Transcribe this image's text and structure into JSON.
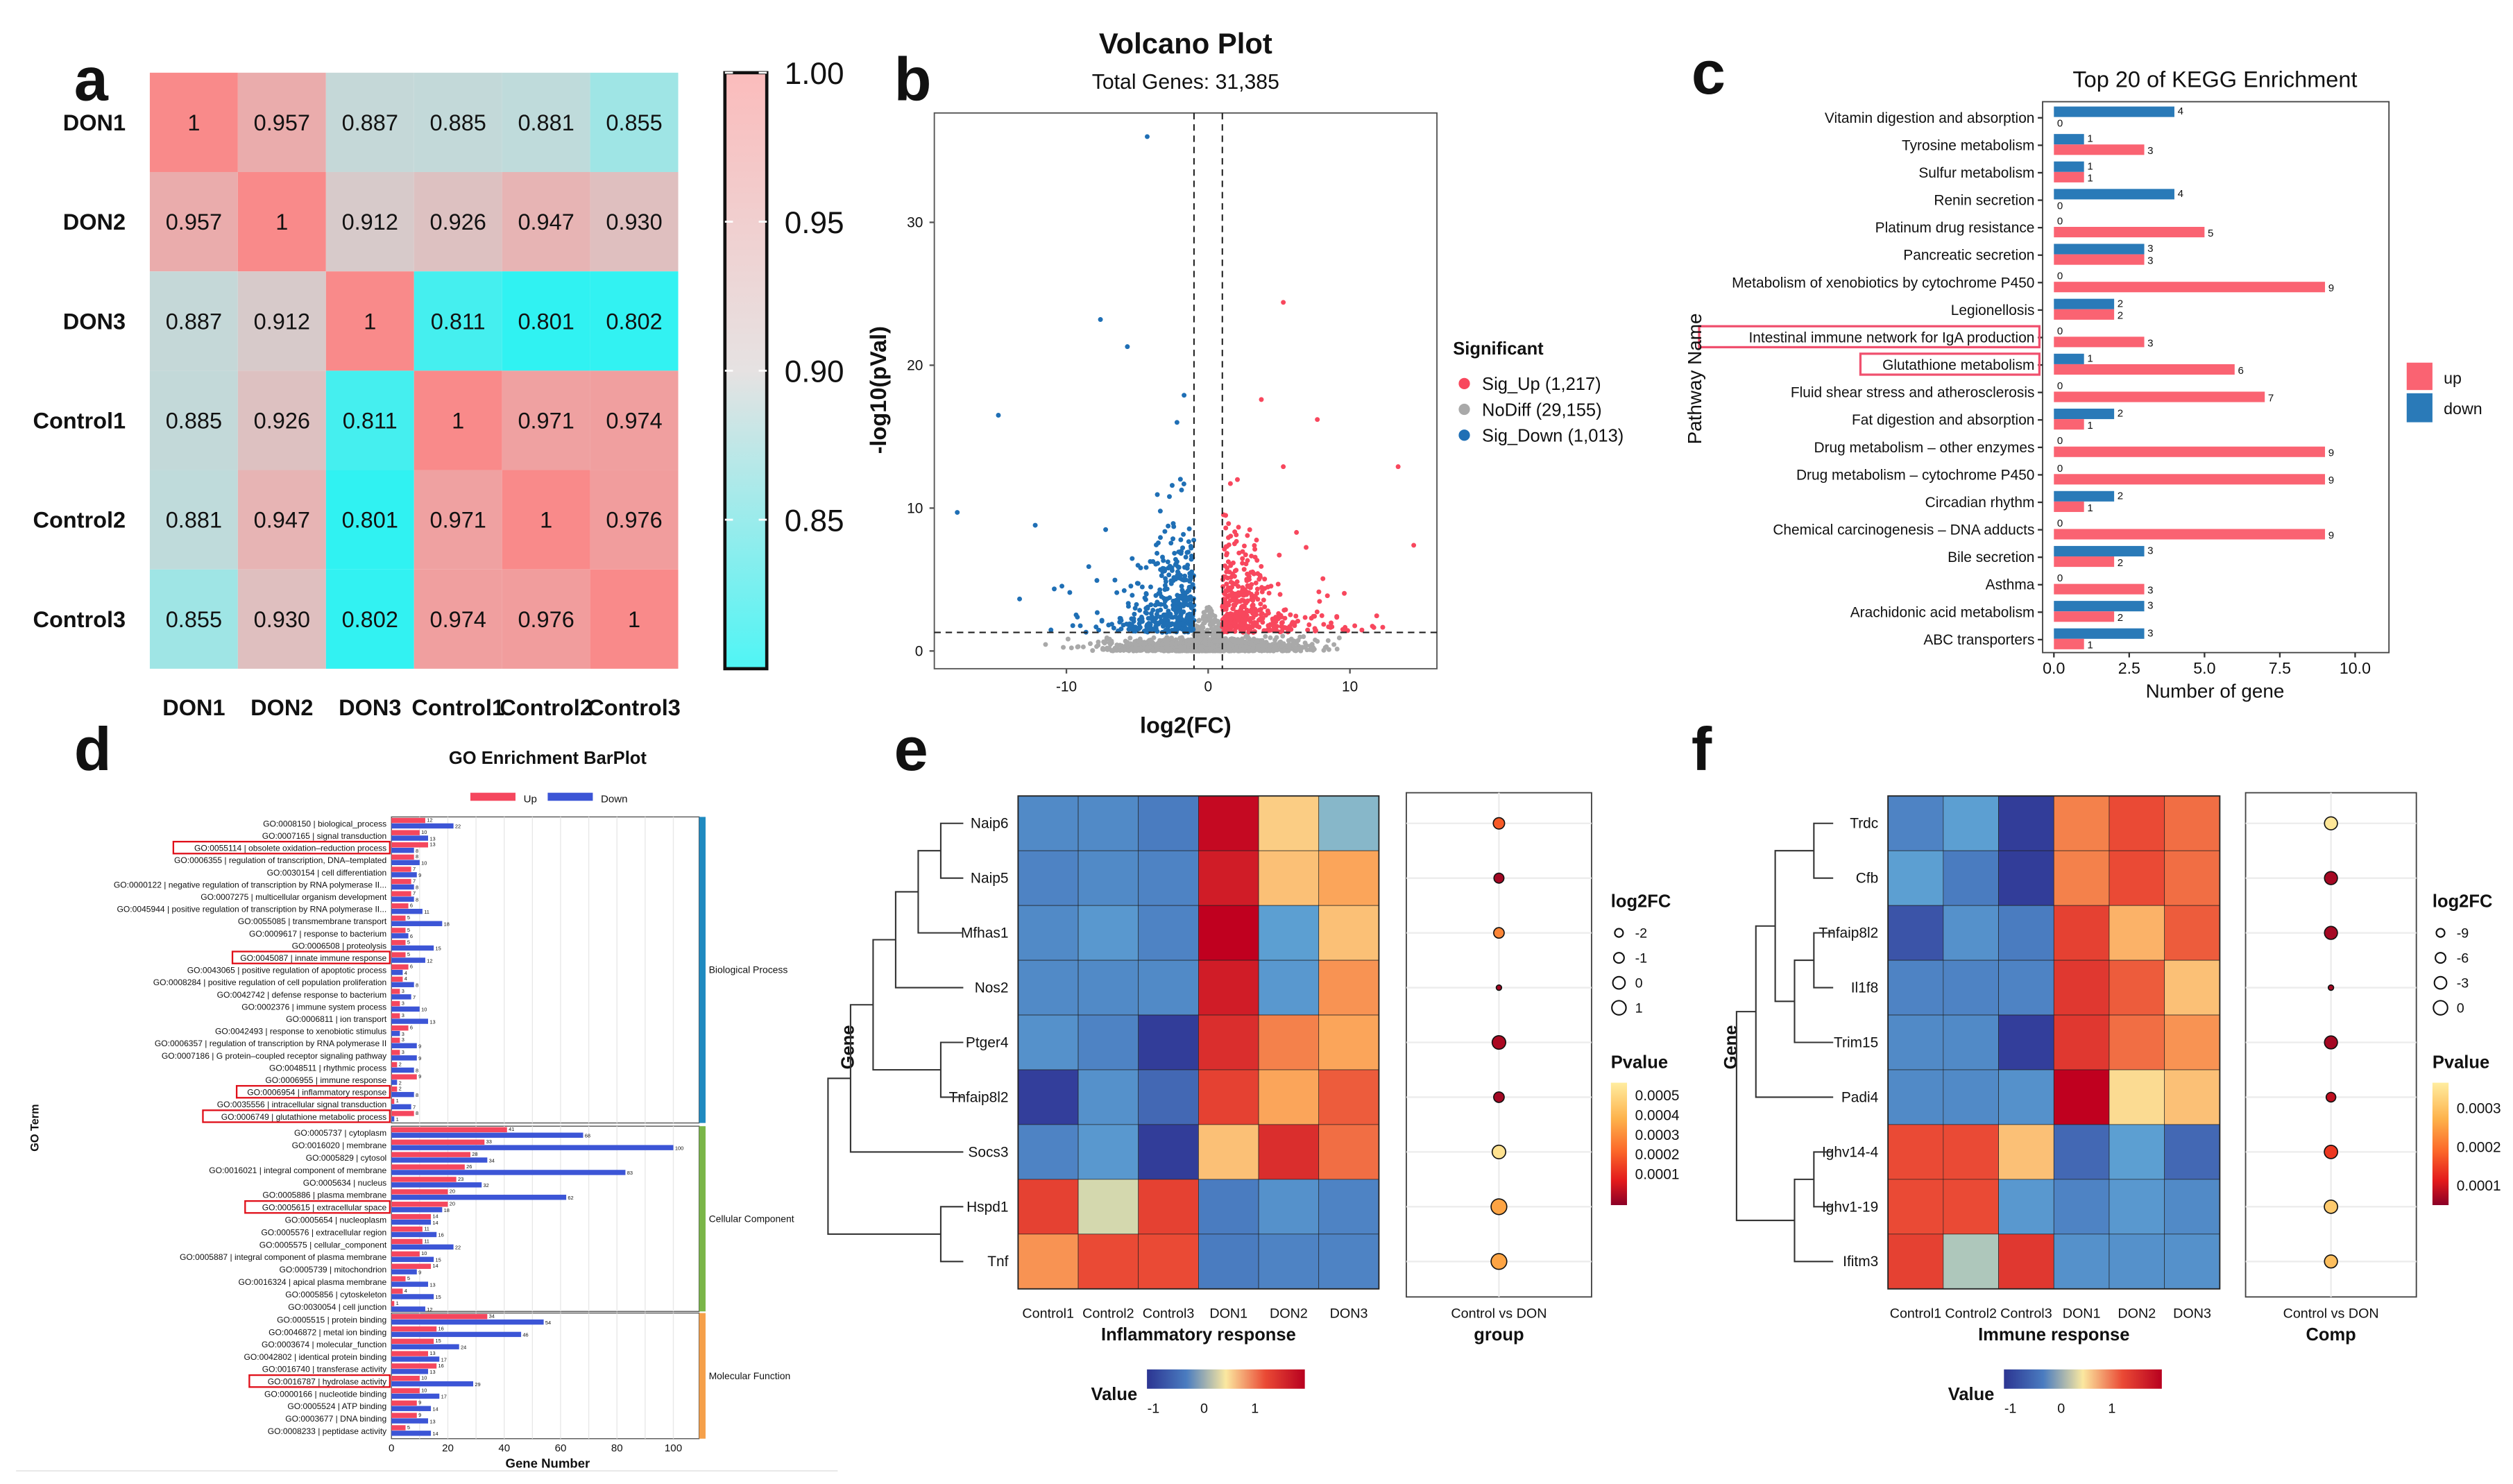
{
  "chart_data": [
    {
      "panel_label": "a",
      "type": "heatmap",
      "rows": [
        "DON1",
        "DON2",
        "DON3",
        "Control1",
        "Control2",
        "Control3"
      ],
      "columns": [
        "DON1",
        "DON2",
        "DON3",
        "Control1",
        "Control2",
        "Control3"
      ],
      "values": [
        [
          1,
          0.957,
          0.887,
          0.885,
          0.881,
          0.855
        ],
        [
          0.957,
          1,
          0.912,
          0.926,
          0.947,
          0.93
        ],
        [
          0.887,
          0.912,
          1,
          0.811,
          0.801,
          0.802
        ],
        [
          0.885,
          0.926,
          0.811,
          1,
          0.971,
          0.974
        ],
        [
          0.881,
          0.947,
          0.801,
          0.971,
          1,
          0.976
        ],
        [
          0.855,
          0.93,
          0.802,
          0.974,
          0.976,
          1
        ]
      ],
      "colorbar": {
        "range": [
          0.8,
          1.0
        ],
        "ticks": [
          1.0,
          0.95,
          0.9,
          0.85
        ],
        "tick_labels": [
          "1.00",
          "0.95",
          "0.90",
          "0.85"
        ],
        "colors": {
          "low": "#2ef2f2",
          "mid": "#d2d2d2",
          "high": "#f98a8a"
        }
      }
    },
    {
      "panel_label": "b",
      "type": "scatter",
      "title": "Volcano Plot",
      "subtitle": "Total Genes: 31,385",
      "xlabel": "log2(FC)",
      "ylabel": "-log10(pVal)",
      "xlim": [
        -19.5,
        16
      ],
      "ylim": [
        -1,
        37.5
      ],
      "xticks": [
        -10,
        0,
        10
      ],
      "yticks": [
        0,
        10,
        20,
        30
      ],
      "thresholds": {
        "log2fc": [
          -1,
          1
        ],
        "neg_log10_p": 1.3
      },
      "legend": {
        "title": "Significant",
        "position": "right",
        "items": [
          {
            "label": "Sig_Up (1,217)",
            "color": "#f8475d"
          },
          {
            "label": "NoDiff (29,155)",
            "color": "#a9a9a9"
          },
          {
            "label": "Sig_Down (1,013)",
            "color": "#1f6fb5"
          }
        ]
      },
      "highlighted_points": {
        "sig_down": [
          [
            -4.3,
            36
          ],
          [
            -7.6,
            23.2
          ],
          [
            -5.7,
            21.3
          ],
          [
            -14.8,
            16.5
          ],
          [
            -17.7,
            9.7
          ],
          [
            -12.2,
            8.8
          ],
          [
            -1.7,
            17.9
          ],
          [
            -2.2,
            16
          ]
        ],
        "sig_up": [
          [
            5.3,
            24.4
          ],
          [
            3.75,
            17.6
          ],
          [
            13.4,
            12.9
          ],
          [
            14.5,
            7.4
          ],
          [
            7.7,
            16.2
          ],
          [
            5.3,
            12.9
          ]
        ]
      }
    },
    {
      "panel_label": "c",
      "type": "bar",
      "orientation": "horizontal",
      "title": "Top 20 of KEGG Enrichment",
      "xlabel": "Number of gene",
      "ylabel": "Pathway Name",
      "xlim": [
        0,
        11
      ],
      "xtick_labels": [
        "0.0",
        "2.5",
        "5.0",
        "7.5",
        "10.0"
      ],
      "xticks": [
        0,
        2.5,
        5,
        7.5,
        10
      ],
      "categories": [
        "Vitamin digestion and absorption",
        "Tyrosine metabolism",
        "Sulfur metabolism",
        "Renin secretion",
        "Platinum drug resistance",
        "Pancreatic secretion",
        "Metabolism of xenobiotics by cytochrome P450",
        "Legionellosis",
        "Intestinal immune network for IgA production",
        "Glutathione metabolism",
        "Fluid shear stress and atherosclerosis",
        "Fat digestion and absorption",
        "Drug metabolism – other enzymes",
        "Drug metabolism – cytochrome P450",
        "Circadian rhythm",
        "Chemical carcinogenesis – DNA adducts",
        "Bile secretion",
        "Asthma",
        "Arachidonic acid metabolism",
        "ABC transporters"
      ],
      "highlighted": [
        "Intestinal immune network for IgA production",
        "Glutathione metabolism"
      ],
      "series": [
        {
          "name": "up",
          "color": "#fa6372",
          "values": [
            0,
            3,
            1,
            0,
            5,
            3,
            9,
            2,
            3,
            6,
            7,
            1,
            9,
            9,
            1,
            9,
            2,
            3,
            2,
            1
          ]
        },
        {
          "name": "down",
          "color": "#2a7ab8",
          "values": [
            4,
            1,
            1,
            4,
            0,
            3,
            0,
            2,
            0,
            1,
            0,
            2,
            0,
            0,
            2,
            0,
            3,
            0,
            3,
            3
          ]
        }
      ],
      "legend_position": "right"
    },
    {
      "panel_label": "d",
      "type": "bar",
      "orientation": "horizontal",
      "title": "GO Enrichment BarPlot",
      "xlabel": "Gene Number",
      "ylabel": "GO Term",
      "xticks": [
        0,
        20,
        40,
        60,
        80,
        100
      ],
      "xlim": [
        0,
        110
      ],
      "legend": {
        "position": "top",
        "items": [
          {
            "name": "Up",
            "color": "#f5475e"
          },
          {
            "name": "Down",
            "color": "#3c55d6"
          }
        ]
      },
      "groups": [
        {
          "name": "Biological Process",
          "color": "#1f8ac0",
          "terms": [
            {
              "label": "GO:0008150 | biological_process",
              "up": 12,
              "down": 22
            },
            {
              "label": "GO:0007165 | signal transduction",
              "up": 10,
              "down": 13
            },
            {
              "label": "GO:0055114 | obsolete oxidation–reduction process",
              "up": 13,
              "down": 8,
              "highlight": true
            },
            {
              "label": "GO:0006355 | regulation of transcription, DNA–templated",
              "up": 8,
              "down": 10
            },
            {
              "label": "GO:0030154 | cell differentiation",
              "up": 7,
              "down": 9
            },
            {
              "label": "GO:0000122 | negative regulation of transcription by RNA polymerase II...",
              "up": 7,
              "down": 8
            },
            {
              "label": "GO:0007275 | multicellular organism development",
              "up": 7,
              "down": 8
            },
            {
              "label": "GO:0045944 | positive regulation of transcription by RNA polymerase II...",
              "up": 6,
              "down": 11
            },
            {
              "label": "GO:0055085 | transmembrane transport",
              "up": 5,
              "down": 18
            },
            {
              "label": "GO:0009617 | response to bacterium",
              "up": 5,
              "down": 6
            },
            {
              "label": "GO:0006508 | proteolysis",
              "up": 5,
              "down": 15
            },
            {
              "label": "GO:0045087 | innate immune response",
              "up": 5,
              "down": 12,
              "highlight": true
            },
            {
              "label": "GO:0043065 | positive regulation of apoptotic process",
              "up": 6,
              "down": 4
            },
            {
              "label": "GO:0008284 | positive regulation of cell population proliferation",
              "up": 4,
              "down": 8
            },
            {
              "label": "GO:0042742 | defense response to bacterium",
              "up": 3,
              "down": 7
            },
            {
              "label": "GO:0002376 | immune system process",
              "up": 3,
              "down": 10
            },
            {
              "label": "GO:0006811 | ion transport",
              "up": 3,
              "down": 13
            },
            {
              "label": "GO:0042493 | response to xenobiotic stimulus",
              "up": 6,
              "down": 3
            },
            {
              "label": "GO:0006357 | regulation of transcription by RNA polymerase II",
              "up": 3,
              "down": 9
            },
            {
              "label": "GO:0007186 | G protein–coupled receptor signaling pathway",
              "up": 3,
              "down": 9
            },
            {
              "label": "GO:0048511 | rhythmic process",
              "up": 2,
              "down": 8
            },
            {
              "label": "GO:0006955 | immune response",
              "up": 9,
              "down": 2
            },
            {
              "label": "GO:0006954 | inflammatory response",
              "up": 2,
              "down": 8,
              "highlight": true
            },
            {
              "label": "GO:0035556 | intracellular signal transduction",
              "up": 1,
              "down": 7
            },
            {
              "label": "GO:0006749 | glutathione metabolic process",
              "up": 8,
              "down": 1,
              "highlight": true
            }
          ]
        },
        {
          "name": "Cellular Component",
          "color": "#7ab648",
          "terms": [
            {
              "label": "GO:0005737 | cytoplasm",
              "up": 41,
              "down": 68
            },
            {
              "label": "GO:0016020 | membrane",
              "up": 33,
              "down": 100
            },
            {
              "label": "GO:0005829 | cytosol",
              "up": 28,
              "down": 34
            },
            {
              "label": "GO:0016021 | integral component of membrane",
              "up": 26,
              "down": 83
            },
            {
              "label": "GO:0005634 | nucleus",
              "up": 23,
              "down": 32
            },
            {
              "label": "GO:0005886 | plasma membrane",
              "up": 20,
              "down": 62
            },
            {
              "label": "GO:0005615 | extracellular space",
              "up": 20,
              "down": 18,
              "highlight": true
            },
            {
              "label": "GO:0005654 | nucleoplasm",
              "up": 14,
              "down": 14
            },
            {
              "label": "GO:0005576 | extracellular region",
              "up": 11,
              "down": 16
            },
            {
              "label": "GO:0005575 | cellular_component",
              "up": 11,
              "down": 22
            },
            {
              "label": "GO:0005887 | integral component of plasma membrane",
              "up": 10,
              "down": 15
            },
            {
              "label": "GO:0005739 | mitochondrion",
              "up": 14,
              "down": 9
            },
            {
              "label": "GO:0016324 | apical plasma membrane",
              "up": 5,
              "down": 13
            },
            {
              "label": "GO:0005856 | cytoskeleton",
              "up": 4,
              "down": 15
            },
            {
              "label": "GO:0030054 | cell junction",
              "up": 1,
              "down": 12
            }
          ]
        },
        {
          "name": "Molecular Function",
          "color": "#f5a04a",
          "terms": [
            {
              "label": "GO:0005515 | protein binding",
              "up": 34,
              "down": 54
            },
            {
              "label": "GO:0046872 | metal ion binding",
              "up": 16,
              "down": 46
            },
            {
              "label": "GO:0003674 | molecular_function",
              "up": 15,
              "down": 24
            },
            {
              "label": "GO:0042802 | identical protein binding",
              "up": 13,
              "down": 17
            },
            {
              "label": "GO:0016740 | transferase activity",
              "up": 16,
              "down": 13
            },
            {
              "label": "GO:0016787 | hydrolase activity",
              "up": 10,
              "down": 29,
              "highlight": true
            },
            {
              "label": "GO:0000166 | nucleotide binding",
              "up": 10,
              "down": 17
            },
            {
              "label": "GO:0005524 | ATP binding",
              "up": 9,
              "down": 14
            },
            {
              "label": "GO:0003677 | DNA binding",
              "up": 9,
              "down": 13
            },
            {
              "label": "GO:0008233 | peptidase activity",
              "up": 5,
              "down": 14
            }
          ]
        }
      ]
    },
    {
      "panel_label": "e",
      "type": "heatmap",
      "xlabel": "Inflammatory response",
      "ylabel": "Gene",
      "genes": [
        "Naip6",
        "Naip5",
        "Mfhas1",
        "Nos2",
        "Ptger4",
        "Tnfaip8l2",
        "Socs3",
        "Hspd1",
        "Tnf"
      ],
      "columns": [
        "Control1",
        "Control2",
        "Control3",
        "DON1",
        "DON2",
        "DON3"
      ],
      "values": [
        [
          -0.8,
          -0.8,
          -1.0,
          1.7,
          0.2,
          -0.3
        ],
        [
          -0.9,
          -0.8,
          -0.9,
          1.5,
          0.3,
          0.5
        ],
        [
          -0.8,
          -0.6,
          -0.9,
          1.8,
          -0.5,
          0.3
        ],
        [
          -0.8,
          -0.8,
          -0.8,
          1.5,
          -0.6,
          0.6
        ],
        [
          -0.7,
          -0.9,
          -1.5,
          1.3,
          0.7,
          0.5
        ],
        [
          -1.4,
          -0.7,
          -1.1,
          1.1,
          0.5,
          0.9
        ],
        [
          -0.9,
          -0.6,
          -1.5,
          0.3,
          1.3,
          0.8
        ],
        [
          1.1,
          -0.1,
          1.1,
          -1.0,
          -0.7,
          -0.9
        ],
        [
          0.6,
          1.0,
          1.0,
          -1.0,
          -0.9,
          -0.9
        ]
      ],
      "value_legend": {
        "title": "Value",
        "ticks": [
          "-1",
          "0",
          "1"
        ]
      },
      "dotplot": {
        "category": "Control vs DON",
        "xlabel": "group",
        "log2fc_legend": {
          "title": "log2FC",
          "ticks": [
            "-2",
            "-1",
            "0",
            "1"
          ]
        },
        "pvalue_legend": {
          "title": "Pvalue",
          "ticks": [
            "0.0005",
            "0.0004",
            "0.0003",
            "0.0002",
            "0.0001"
          ]
        },
        "points": [
          {
            "gene": "Naip6",
            "log2fc": -0.8,
            "pvalue": 0.00022
          },
          {
            "gene": "Naip5",
            "log2fc": -1.3,
            "pvalue": 3e-05
          },
          {
            "gene": "Mfhas1",
            "log2fc": -1.1,
            "pvalue": 0.0003
          },
          {
            "gene": "Nos2",
            "log2fc": -3.0,
            "pvalue": 3e-05
          },
          {
            "gene": "Ptger4",
            "log2fc": 0.0,
            "pvalue": 4e-05
          },
          {
            "gene": "Tnfaip8l2",
            "log2fc": -1.1,
            "pvalue": 3e-05
          },
          {
            "gene": "Socs3",
            "log2fc": 0.0,
            "pvalue": 0.00052
          },
          {
            "gene": "Hspd1",
            "log2fc": 0.8,
            "pvalue": 0.00036
          },
          {
            "gene": "Tnf",
            "log2fc": 0.8,
            "pvalue": 0.00036
          }
        ]
      }
    },
    {
      "panel_label": "f",
      "type": "heatmap",
      "xlabel": "Immune response",
      "ylabel": "Gene",
      "genes": [
        "Trdc",
        "Cfb",
        "Tnfaip8l2",
        "Il1f8",
        "Trim15",
        "Padi4",
        "Ighv14-4",
        "Ighv1-19",
        "Ifitm3"
      ],
      "columns": [
        "Control1",
        "Control2",
        "Control3",
        "DON1",
        "DON2",
        "DON3"
      ],
      "values": [
        [
          -0.9,
          -0.5,
          -1.5,
          0.7,
          1.0,
          0.8
        ],
        [
          -0.5,
          -1.0,
          -1.5,
          0.7,
          1.0,
          0.8
        ],
        [
          -1.2,
          -0.7,
          -1.0,
          1.1,
          0.4,
          0.9
        ],
        [
          -0.9,
          -0.9,
          -0.9,
          1.2,
          0.9,
          0.3
        ],
        [
          -0.8,
          -0.8,
          -1.4,
          1.2,
          0.8,
          0.6
        ],
        [
          -0.8,
          -0.8,
          -0.7,
          1.8,
          0.1,
          0.3
        ],
        [
          1.0,
          1.0,
          0.3,
          -1.1,
          -0.5,
          -1.1
        ],
        [
          1.0,
          1.0,
          -0.6,
          -0.9,
          -0.6,
          -0.8
        ],
        [
          1.1,
          -0.2,
          1.2,
          -0.7,
          -0.7,
          -0.7
        ]
      ],
      "value_legend": {
        "title": "Value",
        "ticks": [
          "-1",
          "0",
          "1"
        ]
      },
      "dotplot": {
        "category": "Control vs DON",
        "xlabel": "Comp",
        "log2fc_legend": {
          "title": "log2FC",
          "ticks": [
            "-9",
            "-6",
            "-3",
            "0"
          ]
        },
        "pvalue_legend": {
          "title": "Pvalue",
          "ticks": [
            "0.0003",
            "0.0002",
            "0.0001"
          ]
        },
        "points": [
          {
            "gene": "Trdc",
            "log2fc": -2.5,
            "pvalue": 0.00033
          },
          {
            "gene": "Cfb",
            "log2fc": -2.5,
            "pvalue": 2e-05
          },
          {
            "gene": "Tnfaip8l2",
            "log2fc": -2.5,
            "pvalue": 2e-05
          },
          {
            "gene": "Il1f8",
            "log2fc": -15,
            "pvalue": 2e-05
          },
          {
            "gene": "Trim15",
            "log2fc": -2.5,
            "pvalue": 2e-05
          },
          {
            "gene": "Padi4",
            "log2fc": -8,
            "pvalue": 4e-05
          },
          {
            "gene": "Ighv14-4",
            "log2fc": -2,
            "pvalue": 0.0001
          },
          {
            "gene": "Ighv1-19",
            "log2fc": -2,
            "pvalue": 0.00028
          },
          {
            "gene": "Ifitm3",
            "log2fc": -2.5,
            "pvalue": 0.00026
          }
        ]
      }
    }
  ]
}
